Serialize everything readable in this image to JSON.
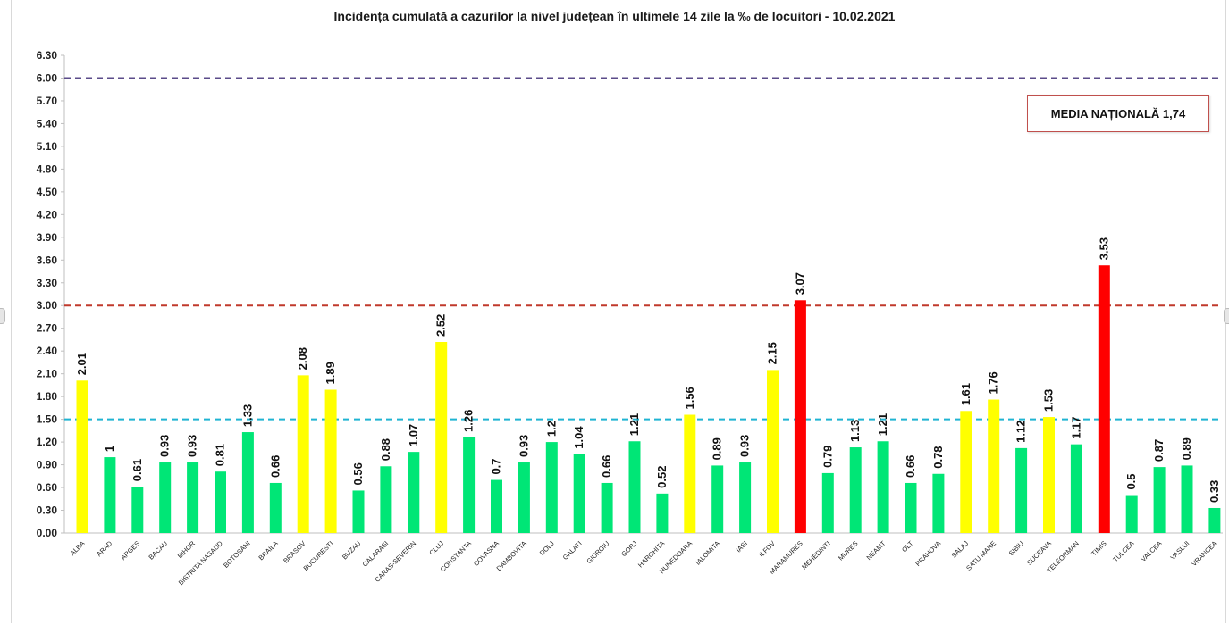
{
  "chart_data": {
    "type": "bar",
    "title": "Incidența cumulată a cazurilor la nivel județean în ultimele 14 zile la ‰ de locuitori - 10.02.2021",
    "categories": [
      "ALBA",
      "ARAD",
      "ARGES",
      "BACAU",
      "BIHOR",
      "BISTRITA NASAUD",
      "BOTOSANI",
      "BRAILA",
      "BRASOV",
      "BUCURESTI",
      "BUZAU",
      "CALARASI",
      "CARAS-SEVERIN",
      "CLUJ",
      "CONSTANTA",
      "COVASNA",
      "DAMBOVITA",
      "DOLJ",
      "GALATI",
      "GIURGIU",
      "GORJ",
      "HARGHITA",
      "HUNEDOARA",
      "IALOMITA",
      "IASI",
      "ILFOV",
      "MARAMURES",
      "MEHEDINTI",
      "MURES",
      "NEAMT",
      "OLT",
      "PRAHOVA",
      "SALAJ",
      "SATU MARE",
      "SIBIU",
      "SUCEAVA",
      "TELEORMAN",
      "TIMIS",
      "TULCEA",
      "VALCEA",
      "VASLUI",
      "VRANCEA"
    ],
    "values": [
      2.01,
      1,
      0.61,
      0.93,
      0.93,
      0.81,
      1.33,
      0.66,
      2.08,
      1.89,
      0.56,
      0.88,
      1.07,
      2.52,
      1.26,
      0.7,
      0.93,
      1.2,
      1.04,
      0.66,
      1.21,
      0.52,
      1.56,
      0.89,
      0.93,
      2.15,
      3.07,
      0.79,
      1.13,
      1.21,
      0.66,
      0.78,
      1.61,
      1.76,
      1.12,
      1.53,
      1.17,
      3.53,
      0.5,
      0.87,
      0.89,
      0.33
    ],
    "value_labels": [
      "2.01",
      "1",
      "0.61",
      "0.93",
      "0.93",
      "0.81",
      "1.33",
      "0.66",
      "2.08",
      "1.89",
      "0.56",
      "0.88",
      "1.07",
      "2.52",
      "1.26",
      "0.7",
      "0.93",
      "1.2",
      "1.04",
      "0.66",
      "1.21",
      "0.52",
      "1.56",
      "0.89",
      "0.93",
      "2.15",
      "3.07",
      "0.79",
      "1.13",
      "1.21",
      "0.66",
      "0.78",
      "1.61",
      "1.76",
      "1.12",
      "1.53",
      "1.17",
      "3.53",
      "0.5",
      "0.87",
      "0.89",
      "0.33"
    ],
    "y_ticks": [
      "0.00",
      "0.30",
      "0.60",
      "0.90",
      "1.20",
      "1.50",
      "1.80",
      "2.10",
      "2.40",
      "2.70",
      "3.00",
      "3.30",
      "3.60",
      "3.90",
      "4.20",
      "4.50",
      "4.80",
      "5.10",
      "5.40",
      "5.70",
      "6.00",
      "6.30"
    ],
    "ylim": [
      0,
      6.3
    ],
    "xlabel": "",
    "ylabel": "",
    "thresholds": [
      {
        "value": 1.5,
        "color": "#1fb4d2"
      },
      {
        "value": 3.0,
        "color": "#c0392b"
      },
      {
        "value": 6.0,
        "color": "#5b4b8a"
      }
    ],
    "color_rules": {
      "green": "#00e676",
      "yellow": "#ffff00",
      "red": "#ff0000"
    },
    "grid": false,
    "legend": "none"
  },
  "annotation": {
    "media_label": "MEDIA NAȚIONALĂ 1,74"
  }
}
